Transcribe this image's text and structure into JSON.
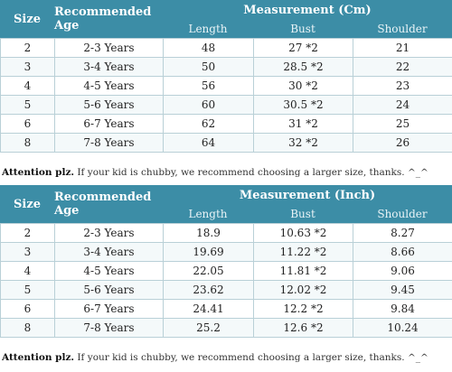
{
  "tables": [
    {
      "header": {
        "size": "Size",
        "age": "Recommended Age",
        "measurement": "Measurement (Cm)",
        "length": "Length",
        "bust": "Bust",
        "shoulder": "Shoulder"
      },
      "rows": [
        {
          "size": "2",
          "age": "2-3 Years",
          "length": "48",
          "bust": "27 *2",
          "shoulder": "21"
        },
        {
          "size": "3",
          "age": "3-4 Years",
          "length": "50",
          "bust": "28.5 *2",
          "shoulder": "22"
        },
        {
          "size": "4",
          "age": "4-5 Years",
          "length": "56",
          "bust": "30 *2",
          "shoulder": "23"
        },
        {
          "size": "5",
          "age": "5-6 Years",
          "length": "60",
          "bust": "30.5 *2",
          "shoulder": "24"
        },
        {
          "size": "6",
          "age": "6-7 Years",
          "length": "62",
          "bust": "31 *2",
          "shoulder": "25"
        },
        {
          "size": "8",
          "age": "7-8 Years",
          "length": "64",
          "bust": "32 *2",
          "shoulder": "26"
        }
      ],
      "note": {
        "label": "Attention plz.",
        "text": " If your kid is chubby, we recommend choosing a larger size, thanks. ^_^"
      }
    },
    {
      "header": {
        "size": "Size",
        "age": "Recommended Age",
        "measurement": "Measurement (Inch)",
        "length": "Length",
        "bust": "Bust",
        "shoulder": "Shoulder"
      },
      "rows": [
        {
          "size": "2",
          "age": "2-3 Years",
          "length": "18.9",
          "bust": "10.63 *2",
          "shoulder": "8.27"
        },
        {
          "size": "3",
          "age": "3-4 Years",
          "length": "19.69",
          "bust": "11.22 *2",
          "shoulder": "8.66"
        },
        {
          "size": "4",
          "age": "4-5 Years",
          "length": "22.05",
          "bust": "11.81 *2",
          "shoulder": "9.06"
        },
        {
          "size": "5",
          "age": "5-6 Years",
          "length": "23.62",
          "bust": "12.02 *2",
          "shoulder": "9.45"
        },
        {
          "size": "6",
          "age": "6-7 Years",
          "length": "24.41",
          "bust": "12.2 *2",
          "shoulder": "9.84"
        },
        {
          "size": "8",
          "age": "7-8 Years",
          "length": "25.2",
          "bust": "12.6 *2",
          "shoulder": "10.24"
        }
      ],
      "note": {
        "label": "Attention plz.",
        "text": " If your kid is chubby, we recommend choosing a larger size, thanks. ^_^"
      }
    }
  ],
  "colors": {
    "header_bg": "#3c8da6",
    "border": "#b9d0d7"
  }
}
